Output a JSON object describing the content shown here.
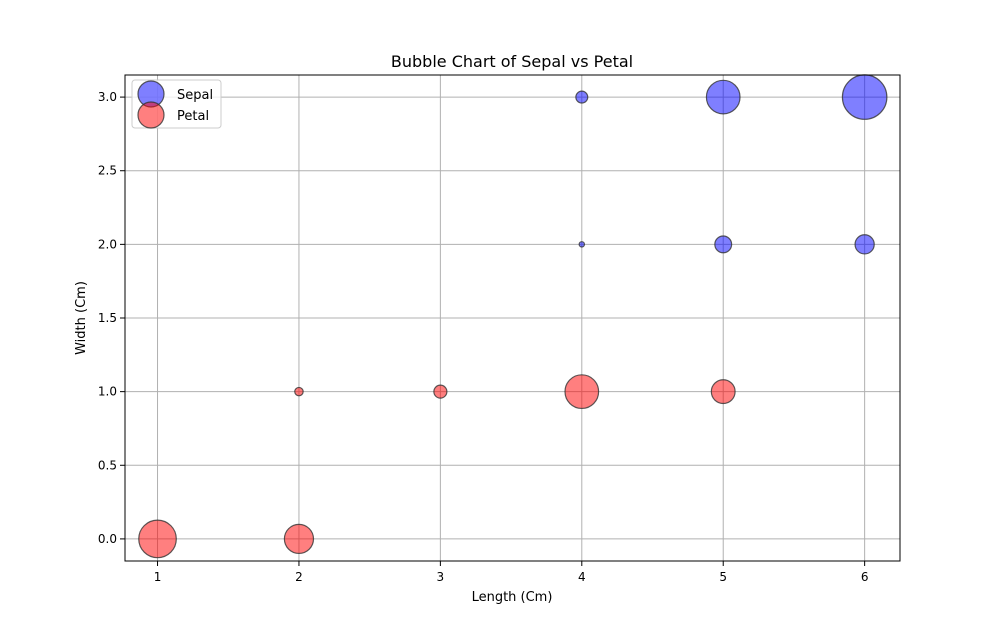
{
  "chart_data": {
    "type": "scatter",
    "subtype": "bubble",
    "title": "Bubble Chart of Sepal vs Petal",
    "xlabel": "Length (Cm)",
    "ylabel": "Width (Cm)",
    "xlim": [
      0.77,
      6.25
    ],
    "ylim": [
      -0.15,
      3.15
    ],
    "xticks": [
      1,
      2,
      3,
      4,
      5,
      6
    ],
    "yticks": [
      0.0,
      0.5,
      1.0,
      1.5,
      2.0,
      2.5,
      3.0
    ],
    "ytick_labels": [
      "0.0",
      "0.5",
      "1.0",
      "1.5",
      "2.0",
      "2.5",
      "3.0"
    ],
    "grid": true,
    "legend_position": "top-left",
    "series": [
      {
        "name": "Sepal",
        "color": "#0000ff",
        "alpha": 0.5,
        "points": [
          {
            "x": 4,
            "y": 3.0,
            "size": 50
          },
          {
            "x": 5,
            "y": 3.0,
            "size": 400
          },
          {
            "x": 6,
            "y": 3.0,
            "size": 700
          },
          {
            "x": 4,
            "y": 2.0,
            "size": 10
          },
          {
            "x": 5,
            "y": 2.0,
            "size": 100
          },
          {
            "x": 6,
            "y": 2.0,
            "size": 130
          }
        ]
      },
      {
        "name": "Petal",
        "color": "#ff0000",
        "alpha": 0.5,
        "points": [
          {
            "x": 2,
            "y": 1.0,
            "size": 25
          },
          {
            "x": 3,
            "y": 1.0,
            "size": 60
          },
          {
            "x": 4,
            "y": 1.0,
            "size": 400
          },
          {
            "x": 5,
            "y": 1.0,
            "size": 200
          },
          {
            "x": 1,
            "y": 0.0,
            "size": 500
          },
          {
            "x": 2,
            "y": 0.0,
            "size": 300
          }
        ]
      }
    ]
  }
}
